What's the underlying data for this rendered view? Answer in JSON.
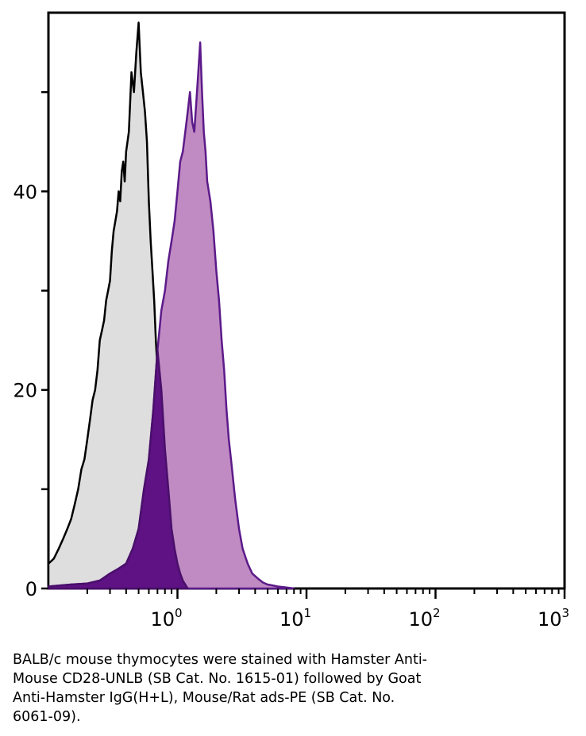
{
  "chart_data": {
    "type": "area",
    "title": "",
    "xlabel": "",
    "ylabel": "",
    "x_scale": "log",
    "xlim": [
      0.1,
      1000
    ],
    "ylim": [
      0,
      58
    ],
    "grid": false,
    "x_ticks": [
      {
        "value": 1,
        "base": "10",
        "exp": "0"
      },
      {
        "value": 10,
        "base": "10",
        "exp": "1"
      },
      {
        "value": 100,
        "base": "10",
        "exp": "2"
      },
      {
        "value": 1000,
        "base": "10",
        "exp": "3"
      }
    ],
    "y_ticks": [
      {
        "value": 0,
        "label": "0"
      },
      {
        "value": 10,
        "label": ""
      },
      {
        "value": 20,
        "label": "20"
      },
      {
        "value": 30,
        "label": ""
      },
      {
        "value": 40,
        "label": "40"
      },
      {
        "value": 50,
        "label": ""
      }
    ],
    "series": [
      {
        "fill": "#dedede",
        "stroke": "#000000",
        "x": [
          0.1,
          0.11,
          0.12,
          0.13,
          0.14,
          0.15,
          0.16,
          0.17,
          0.18,
          0.19,
          0.2,
          0.21,
          0.22,
          0.23,
          0.24,
          0.25,
          0.26,
          0.27,
          0.28,
          0.29,
          0.3,
          0.31,
          0.32,
          0.33,
          0.34,
          0.35,
          0.36,
          0.37,
          0.38,
          0.39,
          0.4,
          0.42,
          0.44,
          0.46,
          0.48,
          0.5,
          0.52,
          0.54,
          0.56,
          0.58,
          0.6,
          0.62,
          0.64,
          0.66,
          0.68,
          0.7,
          0.72,
          0.74,
          0.76,
          0.78,
          0.8,
          0.84,
          0.88,
          0.92,
          0.96,
          1.0,
          1.05,
          1.1,
          1.15
        ],
        "y": [
          2.5,
          3,
          4,
          5,
          6,
          7,
          8.5,
          10,
          12,
          13,
          15,
          17,
          19,
          20,
          22,
          25,
          26,
          27,
          29,
          30,
          31,
          34,
          36,
          37,
          38,
          40,
          39,
          42,
          43,
          41,
          44,
          46,
          52,
          50,
          54,
          57,
          52,
          50,
          48,
          45,
          39,
          35,
          32,
          29,
          25,
          22,
          19,
          17,
          14,
          12,
          10,
          7,
          5,
          3.5,
          2.5,
          1.5,
          1,
          0.5,
          0
        ]
      },
      {
        "fill": "#bf8bc2",
        "stroke": "#5c1a8a",
        "x": [
          0.1,
          0.15,
          0.2,
          0.25,
          0.3,
          0.35,
          0.4,
          0.45,
          0.5,
          0.55,
          0.6,
          0.65,
          0.7,
          0.75,
          0.8,
          0.85,
          0.9,
          0.95,
          1.0,
          1.05,
          1.1,
          1.15,
          1.2,
          1.25,
          1.3,
          1.35,
          1.4,
          1.45,
          1.5,
          1.55,
          1.6,
          1.65,
          1.7,
          1.8,
          1.9,
          2.0,
          2.1,
          2.2,
          2.3,
          2.4,
          2.5,
          2.6,
          2.8,
          3.0,
          3.2,
          3.5,
          3.8,
          4.2,
          4.6,
          5.0,
          5.5,
          6.0,
          7.0,
          8.0
        ],
        "y": [
          0.2,
          0.4,
          0.5,
          0.8,
          1.5,
          2,
          2.5,
          4,
          6,
          10,
          13,
          18,
          24,
          28,
          30,
          33,
          35,
          37,
          40,
          43,
          44,
          46,
          48,
          50,
          47,
          46,
          49,
          52,
          55,
          50,
          46,
          44,
          41,
          39,
          36,
          32,
          29,
          25,
          22,
          18,
          15,
          13,
          9,
          6,
          4,
          2.5,
          1.5,
          1,
          0.6,
          0.4,
          0.3,
          0.2,
          0.1,
          0
        ]
      },
      {
        "fill": "#5e1283",
        "stroke": "#4a0f6b",
        "x": [
          0.1,
          0.15,
          0.2,
          0.25,
          0.3,
          0.35,
          0.4,
          0.45,
          0.5,
          0.55,
          0.6,
          0.65,
          0.7,
          0.75,
          0.8,
          0.85,
          0.9,
          0.95,
          1.0,
          1.05,
          1.1,
          1.2
        ],
        "y": [
          0.2,
          0.4,
          0.5,
          0.8,
          1.5,
          2,
          2.5,
          4,
          6,
          10,
          13,
          18,
          24,
          20,
          14,
          10,
          6,
          4,
          2.5,
          1.5,
          0.8,
          0
        ]
      }
    ]
  },
  "caption": {
    "lines": [
      "BALB/c mouse thymocytes were stained with Hamster Anti-",
      "Mouse CD28-UNLB (SB Cat. No. 1615-01) followed by Goat",
      "Anti-Hamster IgG(H+L), Mouse/Rat ads-PE (SB Cat. No.",
      "6061-09)."
    ]
  }
}
